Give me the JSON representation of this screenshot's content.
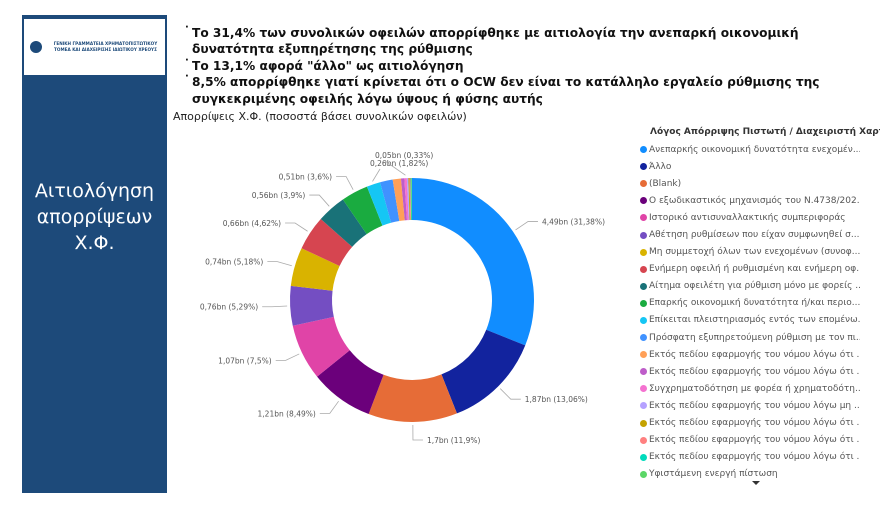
{
  "sidebar": {
    "logo_text": "ΓΕΝΙΚΗ ΓΡΑΜΜΑΤΕΙΑ ΧΡΗΜΑΤΟΠΙΣΤΩΤΙΚΟΥ ΤΟΜΕΑ ΚΑΙ ΔΙΑΧΕΙΡΙΣΗΣ ΙΔΙΩΤΙΚΟΥ ΧΡΕΟΥΣ",
    "title_lines": [
      "Αιτιολόγηση",
      "απορρίψεων",
      "Χ.Φ."
    ],
    "background": "#1d4a7a"
  },
  "bullets": [
    "Το 31,4% των συνολικών οφειλών απορρίφθηκε με αιτιολογία την ανεπαρκή οικονομική δυνατότητα εξυπηρέτησης της ρύθμισης",
    "Το 13,1% αφορά \"άλλο\" ως αιτιολόγηση",
    "8,5% απορρίφθηκε γιατί κρίνεται ότι ο OCW δεν είναι το κατάλληλο εργαλείο ρύθμισης της συγκεκριμένης οφειλής λόγω ύψους ή φύσης αυτής"
  ],
  "chart_data": {
    "type": "pie",
    "variant": "donut",
    "title": "Απορρίψεις Χ.Φ. (ποσοστά βάσει συνολικών οφειλών)",
    "legend_title": "Λόγος Απόρριψης Πιστωτή / Διαχειριστή Χαρτο..",
    "legend_position": "right",
    "slices": [
      {
        "name": "Ανεπαρκής οικονομική δυνατότητα ενεχομέν...",
        "percent": 31.38,
        "label": "4,49bn (31,38%)",
        "color": "#118dff"
      },
      {
        "name": "Άλλο",
        "percent": 13.06,
        "label": "1,87bn (13,06%)",
        "color": "#12239e"
      },
      {
        "name": "(Blank)",
        "percent": 11.9,
        "label": "1,7bn (11,9%)",
        "color": "#e66c37"
      },
      {
        "name": "Ο εξωδικαστικός μηχανισμός του Ν.4738/202...",
        "percent": 8.49,
        "label": "1,21bn (8,49%)",
        "color": "#6b007b"
      },
      {
        "name": "Ιστορικό αντισυναλλακτικής συμπεριφοράς",
        "percent": 7.5,
        "label": "1,07bn (7,5%)",
        "color": "#e044a7"
      },
      {
        "name": "Αθέτηση ρυθμίσεων που είχαν συμφωνηθεί σ...",
        "percent": 5.29,
        "label": "0,76bn (5,29%)",
        "color": "#744ec2"
      },
      {
        "name": "Μη συμμετοχή όλων των ενεχομένων (συνοφ...",
        "percent": 5.18,
        "label": "0,74bn (5,18%)",
        "color": "#d9b300"
      },
      {
        "name": "Ενήμερη οφειλή ή ρυθμισμένη και ενήμερη οφ...",
        "percent": 4.62,
        "label": "0,66bn (4,62%)",
        "color": "#d64550"
      },
      {
        "name": "Αίτημα οφειλέτη για ρύθμιση μόνο με φορείς ...",
        "percent": 3.9,
        "label": "0,56bn (3,9%)",
        "color": "#197278"
      },
      {
        "name": "Επαρκής οικονομική δυνατότητα ή/και περιο...",
        "percent": 3.6,
        "label": "0,51bn (3,6%)",
        "color": "#1aab40"
      },
      {
        "name": "Επίκειται πλειστηριασμός εντός των επομένω...",
        "percent": 1.82,
        "label": "0,26bn (1,82%)",
        "color": "#15c6f4"
      },
      {
        "name": "Πρόσφατη εξυπηρετούμενη ρύθμιση με τον πι...",
        "percent": 1.7,
        "label": "",
        "color": "#4092ff"
      },
      {
        "name": "Εκτός πεδίου εφαρμογής του νόμου λόγω ότι ...",
        "percent": 1.1,
        "label": "",
        "color": "#ffa058"
      },
      {
        "name": "Εκτός πεδίου εφαρμογής του νόμου λόγω ότι ...",
        "percent": 0.45,
        "label": "",
        "color": "#be5dc9"
      },
      {
        "name": "Συγχρηματοδότηση με φορέα ή χρηματοδότη...",
        "percent": 0.33,
        "label": "0,05bn (0,33%)",
        "color": "#f472d0"
      },
      {
        "name": "Εκτός πεδίου εφαρμογής του νόμου λόγω μη ...",
        "percent": 0.2,
        "label": "",
        "color": "#b5a1ff"
      },
      {
        "name": "Εκτός πεδίου εφαρμογής του νόμου λόγω ότι ...",
        "percent": 0.15,
        "label": "",
        "color": "#c4a200"
      },
      {
        "name": "Εκτός πεδίου εφαρμογής του νόμου λόγω ότι ...",
        "percent": 0.13,
        "label": "",
        "color": "#ff8080"
      },
      {
        "name": "Εκτός πεδίου εφαρμογής του νόμου λόγω ότι ...",
        "percent": 0.1,
        "label": "",
        "color": "#00dbbc"
      },
      {
        "name": "Υφιστάμενη ενεργή πίστωση",
        "percent": 0.1,
        "label": "",
        "color": "#5bd667"
      }
    ]
  }
}
